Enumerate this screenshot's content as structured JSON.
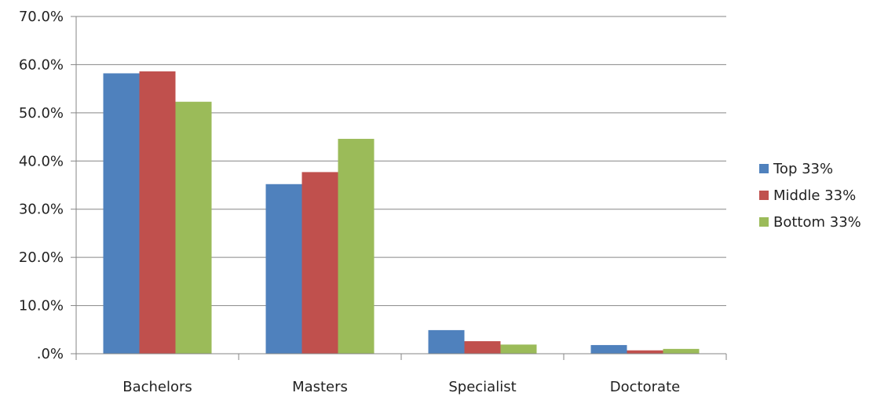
{
  "chart_data": {
    "type": "bar",
    "categories": [
      "Bachelors",
      "Masters",
      "Specialist",
      "Doctorate"
    ],
    "series": [
      {
        "name": "Top 33%",
        "values": [
          58.2,
          35.2,
          4.9,
          1.8
        ],
        "color": "#4F81BD"
      },
      {
        "name": "Middle 33%",
        "values": [
          58.6,
          37.7,
          2.6,
          0.7
        ],
        "color": "#C0504D"
      },
      {
        "name": "Bottom 33%",
        "values": [
          52.3,
          44.6,
          1.9,
          1.0
        ],
        "color": "#9BBB59"
      }
    ],
    "ylim": [
      0,
      70
    ],
    "yticks": [
      0,
      10,
      20,
      30,
      40,
      50,
      60,
      70
    ],
    "ytick_labels": [
      ".0%",
      "10.0%",
      "20.0%",
      "30.0%",
      "40.0%",
      "50.0%",
      "60.0%",
      "70.0%"
    ],
    "grid": true,
    "legend_position": "right",
    "title": "",
    "xlabel": "",
    "ylabel": ""
  }
}
